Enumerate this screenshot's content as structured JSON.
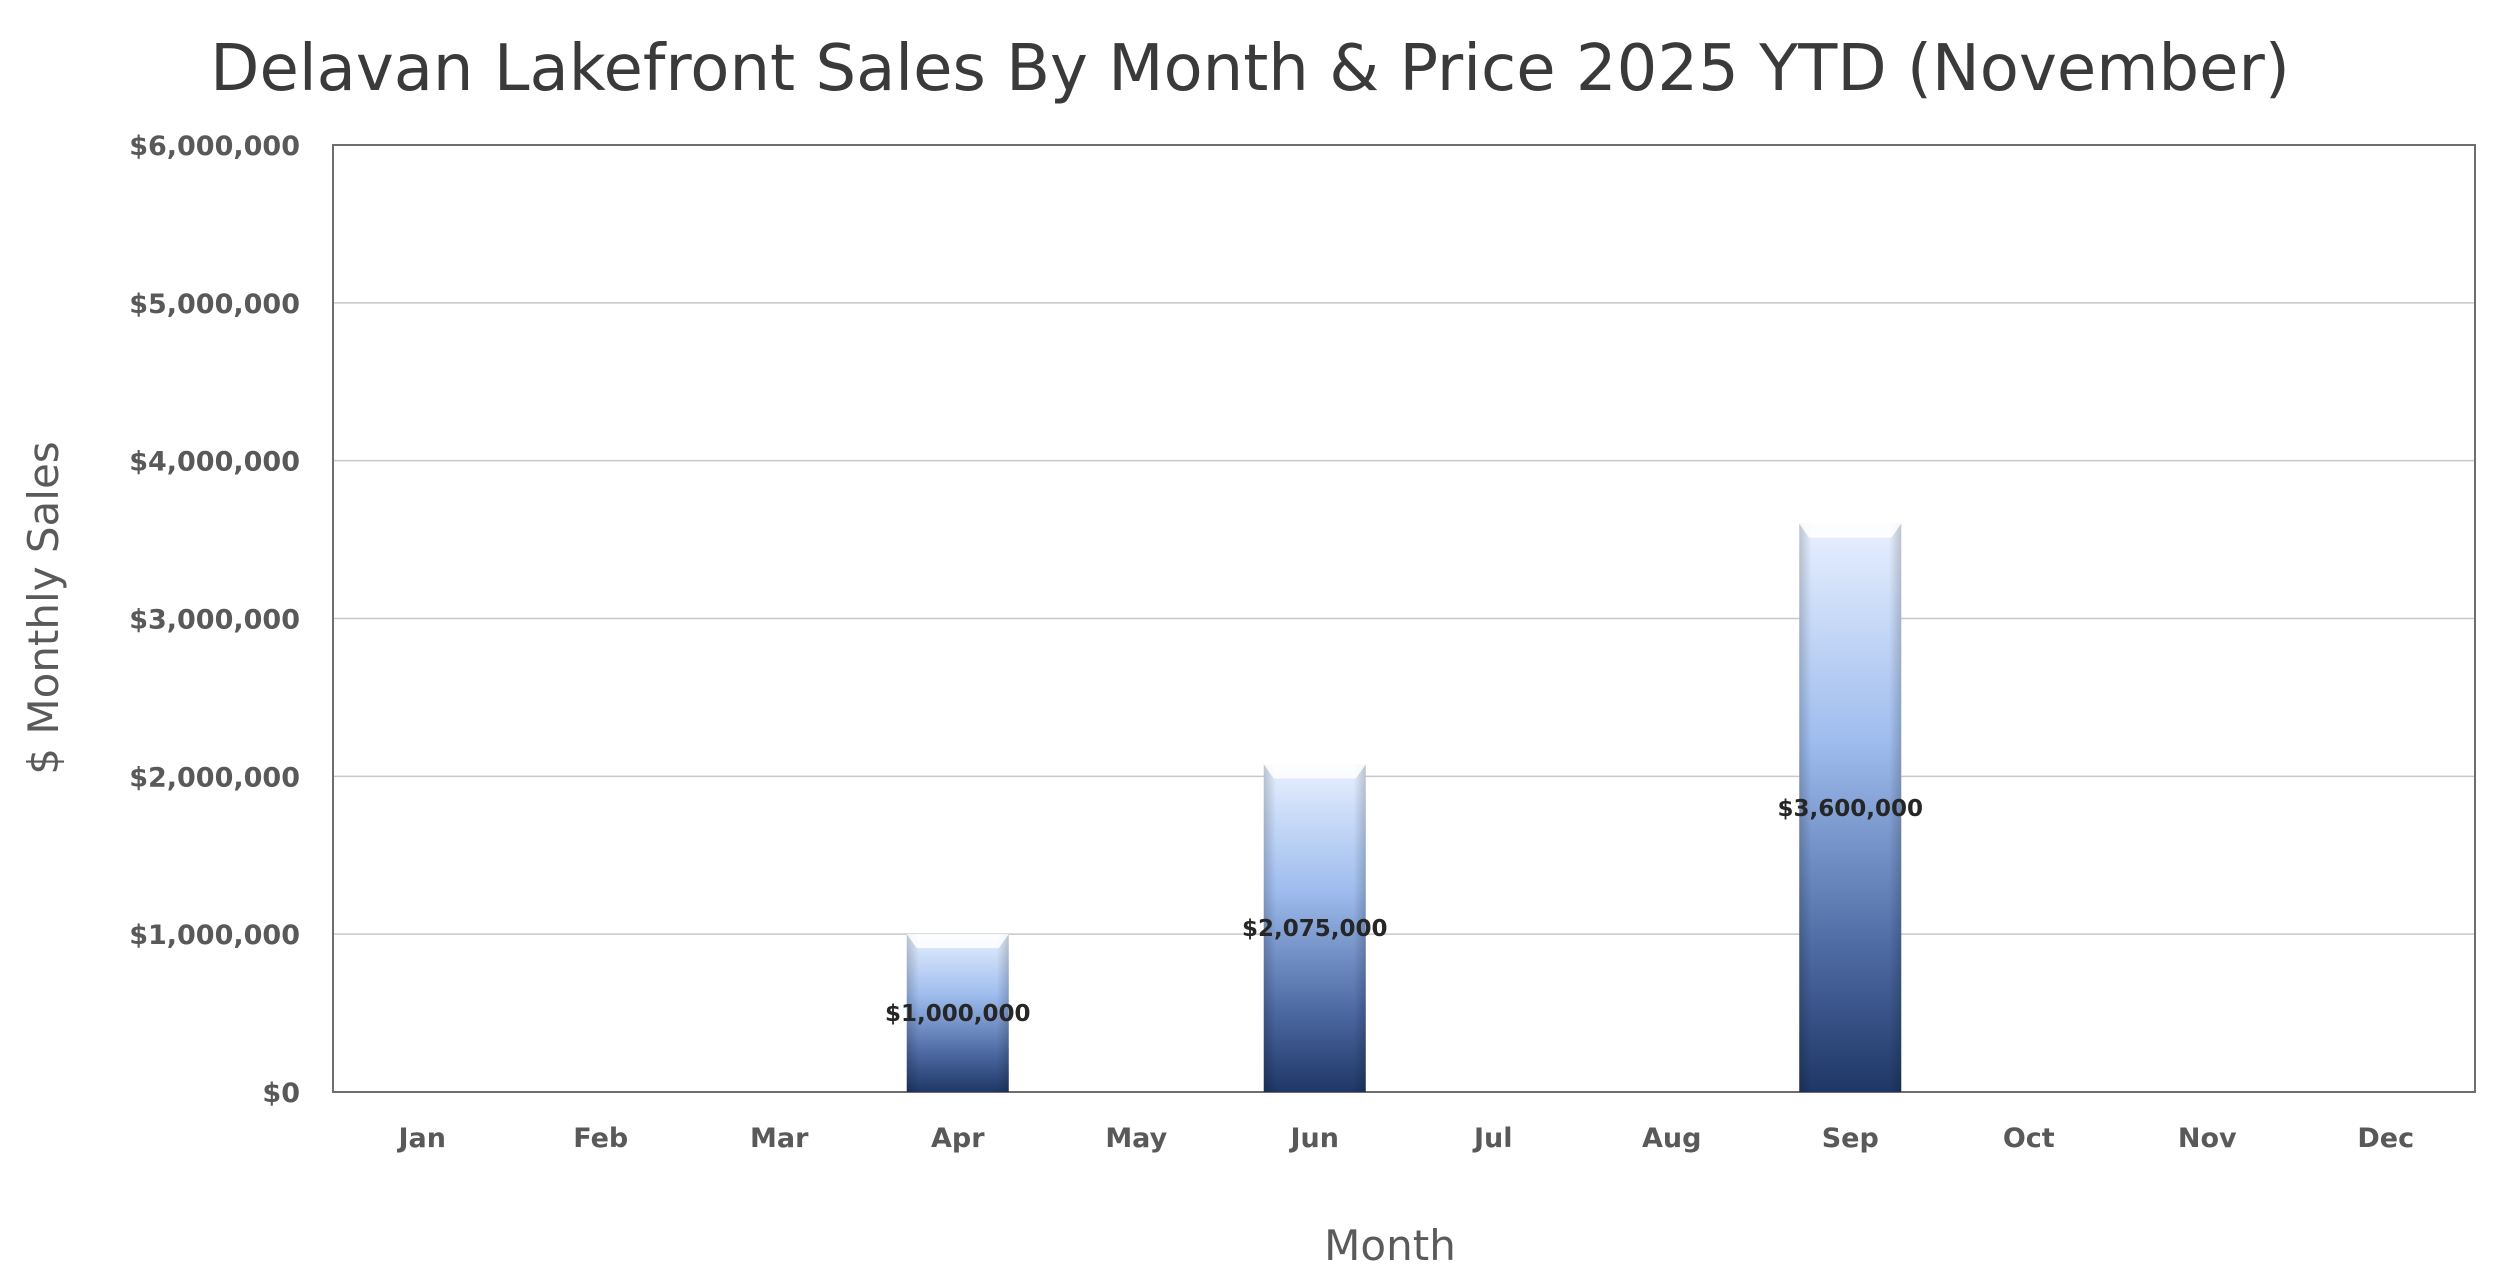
{
  "chart_data": {
    "type": "bar",
    "title": "Delavan Lakefront Sales By Month & Price 2025 YTD (November)",
    "xlabel": "Month",
    "ylabel": "$ Monthly Sales",
    "categories": [
      "Jan",
      "Feb",
      "Mar",
      "Apr",
      "May",
      "Jun",
      "Jul",
      "Aug",
      "Sep",
      "Oct",
      "Nov",
      "Dec"
    ],
    "values": [
      0,
      0,
      0,
      1000000,
      0,
      2075000,
      0,
      0,
      3600000,
      0,
      0,
      0
    ],
    "data_labels": [
      "",
      "",
      "",
      "$1,000,000",
      "",
      "$2,075,000",
      "",
      "",
      "$3,600,000",
      "",
      "",
      ""
    ],
    "ylim": [
      0,
      6000000
    ],
    "yticks": [
      0,
      1000000,
      2000000,
      3000000,
      4000000,
      5000000,
      6000000
    ],
    "ytick_labels": [
      "$0",
      "$1,000,000",
      "$2,000,000",
      "$3,000,000",
      "$4,000,000",
      "$5,000,000",
      "$6,000,000"
    ],
    "grid": true,
    "legend": "none",
    "colors": {
      "bar_top": "#e8f0fe",
      "bar_mid": "#9fbdee",
      "bar_bottom": "#1f3766",
      "gridline": "#c8c8c8",
      "axis": "#6e6e6e"
    }
  }
}
